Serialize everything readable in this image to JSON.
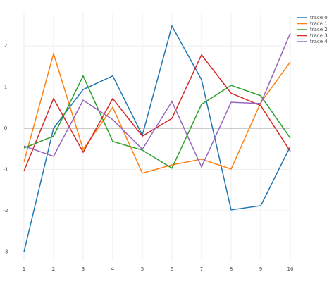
{
  "chart_data": {
    "type": "line",
    "x": [
      1,
      2,
      3,
      4,
      5,
      6,
      7,
      8,
      9,
      10
    ],
    "series": [
      {
        "name": "trace 0",
        "color": "#1f77b4",
        "values": [
          -3.0,
          0.0,
          0.94,
          1.27,
          -0.17,
          2.48,
          1.18,
          -1.98,
          -1.88,
          -0.44
        ]
      },
      {
        "name": "trace 1",
        "color": "#ff7f0e",
        "values": [
          -0.82,
          1.81,
          -0.51,
          0.51,
          -1.09,
          -0.89,
          -0.75,
          -0.99,
          0.62,
          1.61
        ]
      },
      {
        "name": "trace 2",
        "color": "#2ca02c",
        "values": [
          -0.48,
          -0.19,
          1.27,
          -0.32,
          -0.53,
          -0.97,
          0.58,
          1.04,
          0.79,
          -0.24
        ]
      },
      {
        "name": "trace 3",
        "color": "#d62728",
        "values": [
          -1.04,
          0.72,
          -0.58,
          0.72,
          -0.19,
          0.24,
          1.78,
          0.85,
          0.55,
          -0.56
        ]
      },
      {
        "name": "trace 4",
        "color": "#9467bd",
        "values": [
          -0.43,
          -0.68,
          0.68,
          0.21,
          -0.51,
          0.65,
          -0.94,
          0.63,
          0.6,
          2.31
        ]
      }
    ],
    "xlim": [
      1,
      10
    ],
    "xticks": [
      1,
      2,
      3,
      4,
      5,
      6,
      7,
      8,
      9,
      10
    ],
    "ylim": [
      -3.2,
      2.8
    ],
    "yticks": [
      -3,
      -2,
      -1,
      0,
      1,
      2
    ],
    "grid": true,
    "zeroline": true,
    "legend": "top-right"
  }
}
